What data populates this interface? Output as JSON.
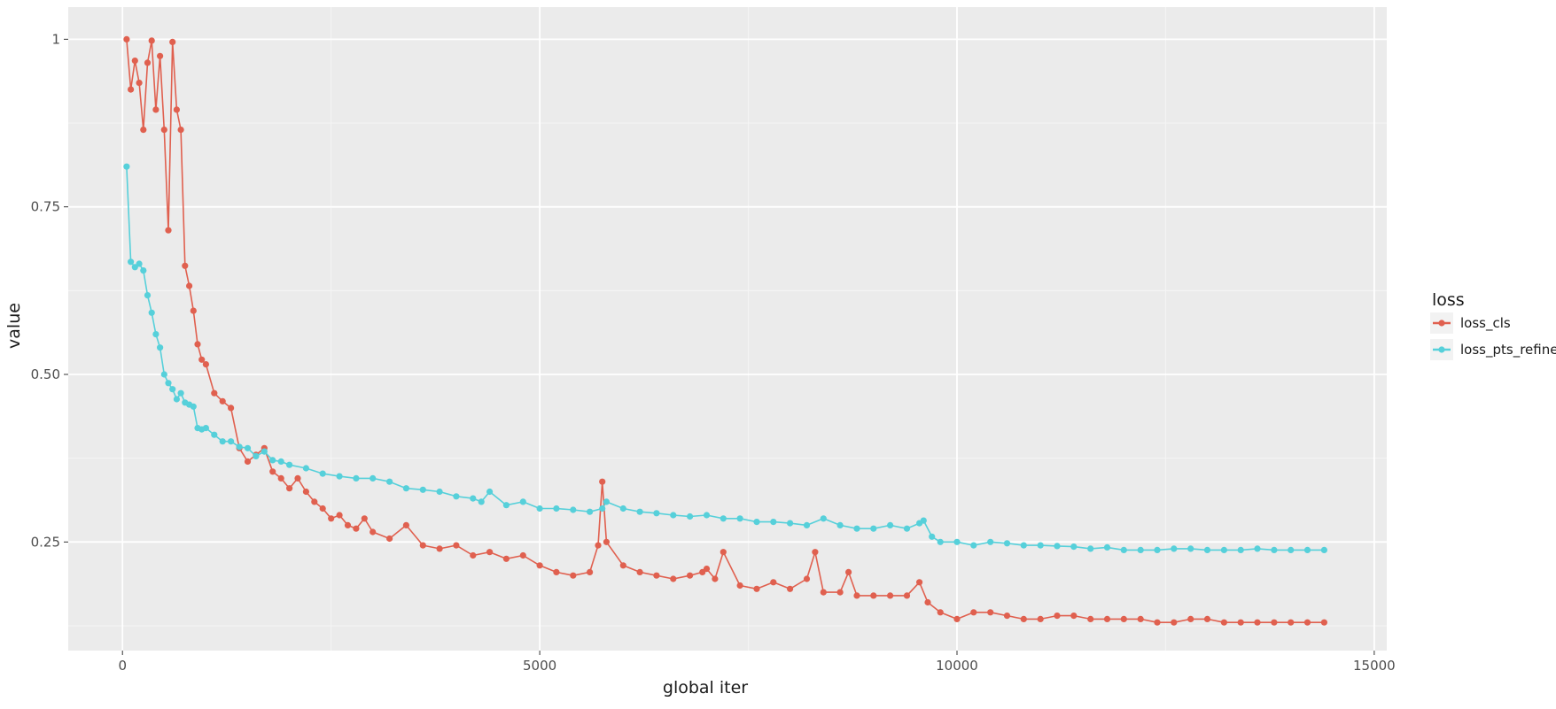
{
  "chart_data": {
    "type": "line",
    "title": "",
    "xlabel": "global iter",
    "ylabel": "value",
    "xlim": [
      -650,
      15150
    ],
    "ylim": [
      0.088,
      1.048
    ],
    "x_ticks": [
      0,
      5000,
      10000,
      15000
    ],
    "x_tick_labels": [
      "0",
      "5000",
      "10000",
      "15000"
    ],
    "y_ticks": [
      0.25,
      0.5,
      0.75,
      1
    ],
    "y_tick_labels": [
      "0.25",
      "0.50",
      "0.75",
      "1"
    ],
    "grid": true,
    "legend": {
      "title": "loss",
      "position": "right"
    },
    "series": [
      {
        "name": "loss_cls",
        "color": "#E0604F",
        "x": [
          50,
          100,
          150,
          200,
          250,
          300,
          350,
          400,
          450,
          500,
          550,
          600,
          650,
          700,
          750,
          800,
          850,
          900,
          950,
          1000,
          1100,
          1200,
          1300,
          1400,
          1500,
          1600,
          1700,
          1800,
          1900,
          2000,
          2100,
          2200,
          2300,
          2400,
          2500,
          2600,
          2700,
          2800,
          2900,
          3000,
          3200,
          3400,
          3600,
          3800,
          4000,
          4200,
          4400,
          4600,
          4800,
          5000,
          5200,
          5400,
          5600,
          5700,
          5750,
          5800,
          6000,
          6200,
          6400,
          6600,
          6800,
          6950,
          7000,
          7100,
          7200,
          7400,
          7600,
          7800,
          8000,
          8200,
          8300,
          8400,
          8600,
          8700,
          8800,
          9000,
          9200,
          9400,
          9550,
          9650,
          9800,
          10000,
          10200,
          10400,
          10600,
          10800,
          11000,
          11200,
          11400,
          11600,
          11800,
          12000,
          12200,
          12400,
          12600,
          12800,
          13000,
          13200,
          13400,
          13600,
          13800,
          14000,
          14200,
          14400
        ],
        "values": [
          1.0,
          0.925,
          0.968,
          0.935,
          0.865,
          0.965,
          0.998,
          0.895,
          0.975,
          0.865,
          0.715,
          0.996,
          0.895,
          0.865,
          0.662,
          0.632,
          0.595,
          0.545,
          0.522,
          0.515,
          0.472,
          0.46,
          0.45,
          0.39,
          0.37,
          0.38,
          0.39,
          0.355,
          0.345,
          0.33,
          0.345,
          0.325,
          0.31,
          0.3,
          0.285,
          0.29,
          0.275,
          0.27,
          0.285,
          0.265,
          0.255,
          0.275,
          0.245,
          0.24,
          0.245,
          0.23,
          0.235,
          0.225,
          0.23,
          0.215,
          0.205,
          0.2,
          0.205,
          0.245,
          0.34,
          0.25,
          0.215,
          0.205,
          0.2,
          0.195,
          0.2,
          0.205,
          0.21,
          0.195,
          0.235,
          0.185,
          0.18,
          0.19,
          0.18,
          0.195,
          0.235,
          0.175,
          0.175,
          0.205,
          0.17,
          0.17,
          0.17,
          0.17,
          0.19,
          0.16,
          0.145,
          0.135,
          0.145,
          0.145,
          0.14,
          0.135,
          0.135,
          0.14,
          0.14,
          0.135,
          0.135,
          0.135,
          0.135,
          0.13,
          0.13,
          0.135,
          0.135,
          0.13,
          0.13,
          0.13,
          0.13,
          0.13,
          0.13,
          0.13
        ]
      },
      {
        "name": "loss_pts_refine",
        "color": "#56D0DA",
        "x": [
          50,
          100,
          150,
          200,
          250,
          300,
          350,
          400,
          450,
          500,
          550,
          600,
          650,
          700,
          750,
          800,
          850,
          900,
          950,
          1000,
          1100,
          1200,
          1300,
          1400,
          1500,
          1600,
          1700,
          1800,
          1900,
          2000,
          2200,
          2400,
          2600,
          2800,
          3000,
          3200,
          3400,
          3600,
          3800,
          4000,
          4200,
          4300,
          4400,
          4600,
          4800,
          5000,
          5200,
          5400,
          5600,
          5750,
          5800,
          6000,
          6200,
          6400,
          6600,
          6800,
          7000,
          7200,
          7400,
          7600,
          7800,
          8000,
          8200,
          8400,
          8600,
          8800,
          9000,
          9200,
          9400,
          9550,
          9600,
          9700,
          9800,
          10000,
          10200,
          10400,
          10600,
          10800,
          11000,
          11200,
          11400,
          11600,
          11800,
          12000,
          12200,
          12400,
          12600,
          12800,
          13000,
          13200,
          13400,
          13600,
          13800,
          14000,
          14200,
          14400
        ],
        "values": [
          0.81,
          0.668,
          0.66,
          0.665,
          0.655,
          0.618,
          0.592,
          0.56,
          0.54,
          0.5,
          0.487,
          0.478,
          0.463,
          0.472,
          0.458,
          0.455,
          0.452,
          0.42,
          0.418,
          0.42,
          0.41,
          0.4,
          0.4,
          0.392,
          0.39,
          0.378,
          0.385,
          0.372,
          0.37,
          0.365,
          0.36,
          0.352,
          0.348,
          0.345,
          0.345,
          0.34,
          0.33,
          0.328,
          0.325,
          0.318,
          0.315,
          0.31,
          0.325,
          0.305,
          0.31,
          0.3,
          0.3,
          0.298,
          0.295,
          0.3,
          0.31,
          0.3,
          0.295,
          0.293,
          0.29,
          0.288,
          0.29,
          0.285,
          0.285,
          0.28,
          0.28,
          0.278,
          0.275,
          0.285,
          0.275,
          0.27,
          0.27,
          0.275,
          0.27,
          0.278,
          0.282,
          0.258,
          0.25,
          0.25,
          0.245,
          0.25,
          0.248,
          0.245,
          0.245,
          0.244,
          0.243,
          0.24,
          0.242,
          0.238,
          0.238,
          0.238,
          0.24,
          0.24,
          0.238,
          0.238,
          0.238,
          0.24,
          0.238,
          0.238,
          0.238,
          0.238
        ]
      }
    ]
  }
}
